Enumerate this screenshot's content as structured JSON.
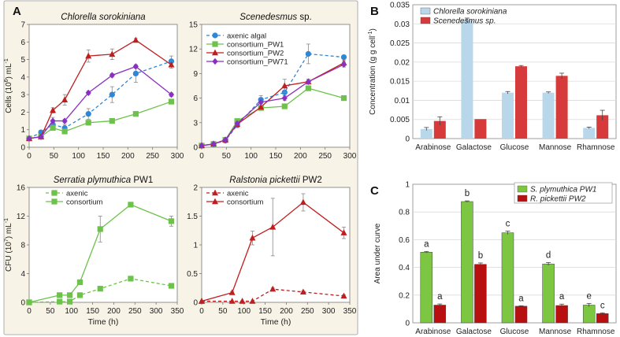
{
  "panel_labels": {
    "a": "A",
    "b": "B",
    "c": "C"
  },
  "colors": {
    "panel_a_bg": "#f7f3e7",
    "panel_a_border": "#9a9a9a",
    "axenic_algal": "#2e86d6",
    "pw1": "#6cc24a",
    "pw2": "#c01e1e",
    "pw71": "#8a2fc4",
    "chlorella_bar": "#b9d7ea",
    "scenedesmus_bar": "#d63a3a",
    "splym_bar": "#7cc642",
    "rpick_bar": "#b81010"
  },
  "chart_data": [
    {
      "id": "chlorella",
      "type": "line",
      "title": "Chlorella sorokiniana",
      "ylabel_main": "Cells (10",
      "ylabel_sup": "6",
      "ylabel_tail": ") mL",
      "ylabel_unit_sup": "-1",
      "xlim": [
        0,
        300
      ],
      "ylim": [
        0,
        7
      ],
      "xticks": [
        "0",
        "50",
        "100",
        "150",
        "200",
        "250",
        "300"
      ],
      "yticks": [
        "0",
        "1",
        "2",
        "3",
        "4",
        "5",
        "6",
        "7"
      ],
      "series": [
        {
          "name": "axenic algal",
          "color": "#2e86d6",
          "marker": "circle",
          "dash": true,
          "x": [
            0,
            24,
            48,
            72,
            120,
            168,
            216,
            288
          ],
          "y": [
            0.5,
            0.85,
            1.3,
            1.1,
            1.9,
            3.0,
            4.2,
            4.9
          ],
          "err": [
            0.1,
            0.12,
            0.2,
            0.2,
            0.3,
            0.45,
            0.5,
            0.3
          ]
        },
        {
          "name": "consortium_PW1",
          "color": "#6cc24a",
          "marker": "square",
          "dash": false,
          "x": [
            0,
            24,
            48,
            72,
            120,
            168,
            216,
            288
          ],
          "y": [
            0.5,
            0.6,
            1.1,
            0.9,
            1.4,
            1.5,
            1.9,
            2.6
          ],
          "err": [
            0.05,
            0.1,
            0.1,
            0.1,
            0.1,
            0.1,
            0.1,
            0.1
          ]
        },
        {
          "name": "consortium_PW2",
          "color": "#c01e1e",
          "marker": "triangle",
          "dash": false,
          "x": [
            0,
            24,
            48,
            72,
            120,
            168,
            216,
            288
          ],
          "y": [
            0.5,
            0.6,
            2.1,
            2.7,
            5.2,
            5.3,
            6.1,
            4.7
          ],
          "err": [
            0.05,
            0.1,
            0.15,
            0.3,
            0.35,
            0.3,
            0.1,
            0.2
          ]
        },
        {
          "name": "consortium_PW71",
          "color": "#8a2fc4",
          "marker": "diamond",
          "dash": false,
          "x": [
            0,
            24,
            48,
            72,
            120,
            168,
            216,
            288
          ],
          "y": [
            0.5,
            0.6,
            1.5,
            1.5,
            3.1,
            4.1,
            4.6,
            3.0
          ],
          "err": [
            0.05,
            0.1,
            0.2,
            0.1,
            0.1,
            0.1,
            0.1,
            0.1
          ]
        }
      ]
    },
    {
      "id": "scenedesmus",
      "type": "line",
      "title": "Scenedesmus",
      "title_tail": " sp.",
      "xlim": [
        0,
        300
      ],
      "ylim": [
        0,
        15
      ],
      "xticks": [
        "0",
        "50",
        "100",
        "150",
        "200",
        "250",
        "300"
      ],
      "yticks": [
        "0",
        "3",
        "6",
        "9",
        "12",
        "15"
      ],
      "legend": [
        "axenic algal",
        "consortium_PW1",
        "consortium_PW2",
        "consortium_PW71"
      ],
      "series": [
        {
          "name": "axenic algal",
          "color": "#2e86d6",
          "marker": "circle",
          "dash": true,
          "x": [
            0,
            24,
            48,
            72,
            120,
            168,
            216,
            288
          ],
          "y": [
            0.2,
            0.4,
            0.8,
            2.7,
            5.8,
            6.7,
            11.4,
            11.0
          ],
          "err": [
            0.05,
            0.1,
            0.15,
            0.3,
            0.5,
            0.8,
            1.2,
            0.2
          ]
        },
        {
          "name": "consortium_PW1",
          "color": "#6cc24a",
          "marker": "square",
          "dash": false,
          "x": [
            0,
            24,
            48,
            72,
            120,
            168,
            216,
            288
          ],
          "y": [
            0.2,
            0.4,
            0.9,
            3.2,
            4.8,
            5.0,
            7.2,
            6.0
          ],
          "err": [
            0.05,
            0.1,
            0.1,
            0.2,
            0.2,
            0.2,
            0.2,
            0.2
          ]
        },
        {
          "name": "consortium_PW2",
          "color": "#c01e1e",
          "marker": "triangle",
          "dash": false,
          "x": [
            0,
            24,
            48,
            72,
            120,
            168,
            216,
            288
          ],
          "y": [
            0.2,
            0.4,
            0.9,
            2.8,
            4.9,
            7.5,
            8.0,
            10.3
          ],
          "err": [
            0.05,
            0.1,
            0.1,
            0.2,
            0.2,
            0.8,
            0.3,
            0.3
          ]
        },
        {
          "name": "consortium_PW71",
          "color": "#8a2fc4",
          "marker": "diamond",
          "dash": false,
          "x": [
            0,
            24,
            48,
            72,
            120,
            168,
            216,
            288
          ],
          "y": [
            0.2,
            0.4,
            0.9,
            2.9,
            5.5,
            6.0,
            8.0,
            10.1
          ],
          "err": [
            0.05,
            0.1,
            0.1,
            0.2,
            0.2,
            0.3,
            0.3,
            0.3
          ]
        }
      ]
    },
    {
      "id": "serratia",
      "type": "line",
      "title": "Serratia plymuthica",
      "title_tail": " PW1",
      "ylabel_main": "CFU (10",
      "ylabel_sup": "7",
      "ylabel_tail": ") mL",
      "ylabel_unit_sup": "-1",
      "xlabel": "Time (h)",
      "xlim": [
        0,
        350
      ],
      "ylim": [
        0,
        16
      ],
      "xticks": [
        "0",
        "50",
        "100",
        "150",
        "200",
        "250",
        "300",
        "350"
      ],
      "yticks": [
        "0",
        "4",
        "8",
        "12",
        "16"
      ],
      "legend": [
        "axenic",
        "consortium"
      ],
      "series": [
        {
          "name": "axenic",
          "color": "#6cc24a",
          "marker": "square",
          "dash": true,
          "x": [
            0,
            72,
            96,
            120,
            168,
            240,
            336
          ],
          "y": [
            0.0,
            0.1,
            0.1,
            1.0,
            1.9,
            3.3,
            2.3
          ],
          "err": [
            0,
            0,
            0,
            0.1,
            0.1,
            0.15,
            0.1
          ]
        },
        {
          "name": "consortium",
          "color": "#6cc24a",
          "marker": "square",
          "dash": false,
          "x": [
            0,
            72,
            96,
            120,
            168,
            240,
            336
          ],
          "y": [
            0.0,
            1.0,
            1.0,
            2.8,
            10.2,
            13.6,
            11.3
          ],
          "err": [
            0,
            0.1,
            0.1,
            0.2,
            1.8,
            0.3,
            0.7
          ]
        }
      ]
    },
    {
      "id": "ralstonia",
      "type": "line",
      "title": "Ralstonia pickettii",
      "title_tail": " PW2",
      "xlabel": "Time (h)",
      "xlim": [
        0,
        350
      ],
      "ylim": [
        0,
        2
      ],
      "xticks": [
        "0",
        "50",
        "100",
        "150",
        "200",
        "250",
        "300",
        "350"
      ],
      "yticks": [
        "0",
        "0.5",
        "1",
        "1.5",
        "2"
      ],
      "legend": [
        "axenic",
        "consortium"
      ],
      "series": [
        {
          "name": "axenic",
          "color": "#c01e1e",
          "marker": "triangle",
          "dash": true,
          "x": [
            0,
            72,
            96,
            120,
            168,
            240,
            336
          ],
          "y": [
            0.02,
            0.02,
            0.02,
            0.02,
            0.23,
            0.18,
            0.11
          ],
          "err": [
            0,
            0,
            0,
            0,
            0.02,
            0.02,
            0.02
          ]
        },
        {
          "name": "consortium",
          "color": "#c01e1e",
          "marker": "triangle",
          "dash": false,
          "x": [
            0,
            72,
            120,
            168,
            240,
            336
          ],
          "y": [
            0.02,
            0.17,
            1.12,
            1.31,
            1.74,
            1.21
          ],
          "err": [
            0,
            0.02,
            0.12,
            0.5,
            0.15,
            0.1
          ]
        }
      ]
    },
    {
      "id": "concentration",
      "type": "bar",
      "ylabel_main": "Concentration (g g cell",
      "ylabel_sup": "-1",
      "ylabel_tail": ")",
      "ylim": [
        0,
        0.035
      ],
      "yticks": [
        "0",
        "0.005",
        "0.01",
        "0.015",
        "0.02",
        "0.025",
        "0.03",
        "0.035"
      ],
      "categories": [
        "Arabinose",
        "Galactose",
        "Glucose",
        "Mannose",
        "Rhamnose"
      ],
      "series": [
        {
          "name": "Chlorella sorokiniana",
          "color": "#b9d7ea",
          "values": [
            0.0025,
            0.031,
            0.012,
            0.012,
            0.0028
          ],
          "err": [
            0.0004,
            0.0005,
            0.0003,
            0.0002,
            0.0002
          ]
        },
        {
          "name": "Scenedesmus sp.",
          "color": "#d63a3a",
          "values": [
            0.0046,
            0.0051,
            0.0189,
            0.0164,
            0.0061
          ],
          "err": [
            0.0011,
            0.0,
            0.0002,
            0.0007,
            0.0013
          ]
        }
      ]
    },
    {
      "id": "auc",
      "type": "bar",
      "ylabel": "Area under curve",
      "ylim": [
        0,
        1
      ],
      "yticks": [
        "0",
        "0.2",
        "0.4",
        "0.6",
        "0.8",
        "1"
      ],
      "categories": [
        "Arabinose",
        "Galactose",
        "Glucose",
        "Mannose",
        "Rhamnose"
      ],
      "series": [
        {
          "name": "S. plymuthica PW1",
          "color": "#7cc642",
          "values": [
            0.51,
            0.875,
            0.65,
            0.425,
            0.128
          ],
          "err": [
            0.005,
            0.005,
            0.012,
            0.01,
            0.012
          ],
          "labels": [
            "a",
            "b",
            "c",
            "d",
            "e"
          ]
        },
        {
          "name": "R. pickettii PW2",
          "color": "#b81010",
          "values": [
            0.128,
            0.422,
            0.12,
            0.125,
            0.067
          ],
          "err": [
            0.008,
            0.01,
            0.003,
            0.01,
            0.005
          ],
          "labels": [
            "a",
            "b",
            "a",
            "a",
            "c"
          ]
        }
      ]
    }
  ]
}
